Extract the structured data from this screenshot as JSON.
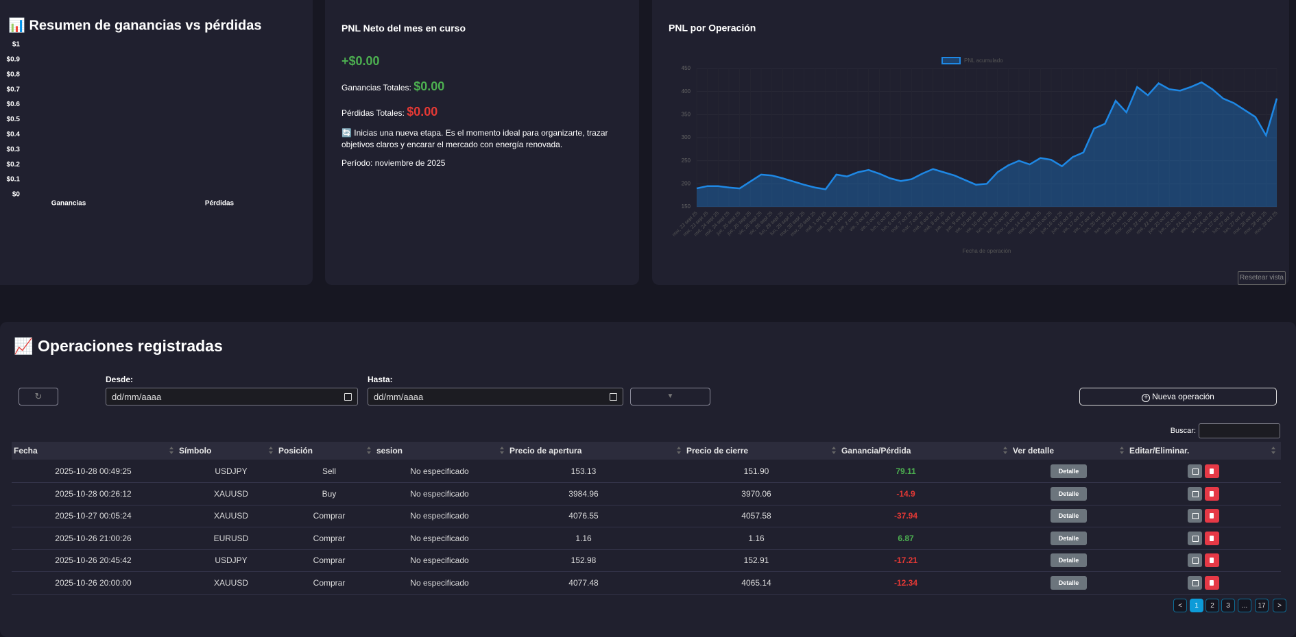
{
  "chart_data": [
    {
      "type": "bar",
      "title": "📊 Resumen de ganancias vs pérdidas",
      "categories": [
        "Ganancias",
        "Pérdidas"
      ],
      "values": [
        0,
        0
      ],
      "color": "#4caf50",
      "ylim": [
        0,
        1
      ],
      "yticks": [
        {
          "value": 0,
          "label": "$0"
        },
        {
          "value": 0.1,
          "label": "$0.1"
        },
        {
          "value": 0.2,
          "label": "$0.2"
        },
        {
          "value": 0.3,
          "label": "$0.3"
        },
        {
          "value": 0.4,
          "label": "$0.4"
        },
        {
          "value": 0.5,
          "label": "$0.5"
        },
        {
          "value": 0.6,
          "label": "$0.6"
        },
        {
          "value": 0.7,
          "label": "$0.7"
        },
        {
          "value": 0.8,
          "label": "$0.8"
        },
        {
          "value": 0.9,
          "label": "$0.9"
        },
        {
          "value": 1,
          "label": "$1"
        }
      ],
      "grid": false
    },
    {
      "type": "line",
      "title": "PNL por Operación",
      "x_label": "Fecha de operación",
      "categories": [
        "mar, 23 sept 25",
        "mar, 23 sept 25",
        "mié, 24 sept 25",
        "mié, 24 sept 25",
        "jue, 25 sept 25",
        "jue, 25 sept 25",
        "vie, 26 sept 25",
        "vie, 26 sept 25",
        "lun, 29 sept 25",
        "lun, 29 sept 25",
        "mar, 30 sept 25",
        "mar, 30 sept 25",
        "mié, 1 oct 25",
        "mié, 1 oct 25",
        "jue, 2 oct 25",
        "jue, 2 oct 25",
        "vie, 3 oct 25",
        "vie, 3 oct 25",
        "lun, 6 oct 25",
        "lun, 6 oct 25",
        "mar, 7 oct 25",
        "mar, 7 oct 25",
        "mié, 8 oct 25",
        "mié, 8 oct 25",
        "jue, 9 oct 25",
        "jue, 9 oct 25",
        "vie, 10 oct 25",
        "vie, 10 oct 25",
        "lun, 13 oct 25",
        "lun, 13 oct 25",
        "mar, 14 oct 25",
        "mar, 14 oct 25",
        "mié, 15 oct 25",
        "mié, 15 oct 25",
        "jue, 16 oct 25",
        "jue, 16 oct 25",
        "vie, 17 oct 25",
        "vie, 17 oct 25",
        "lun, 20 oct 25",
        "lun, 20 oct 25",
        "mar, 21 oct 25",
        "mar, 21 oct 25",
        "mié, 22 oct 25",
        "mié, 22 oct 25",
        "jue, 23 oct 25",
        "jue, 23 oct 25",
        "vie, 24 oct 25",
        "vie, 24 oct 25",
        "vie, 24 oct 25",
        "lun, 27 oct 25",
        "lun, 27 oct 25",
        "lun, 27 oct 25",
        "mar, 28 oct 25",
        "mar, 28 oct 25",
        "mar, 28 oct 25"
      ],
      "series": [
        {
          "name": "PNL acumulado",
          "color": "#1e88e5",
          "values": [
            190,
            195,
            195,
            192,
            190,
            205,
            220,
            218,
            212,
            205,
            198,
            192,
            188,
            220,
            216,
            225,
            230,
            222,
            212,
            206,
            210,
            222,
            232,
            225,
            218,
            208,
            198,
            200,
            225,
            240,
            250,
            242,
            256,
            252,
            238,
            258,
            268,
            320,
            330,
            380,
            355,
            410,
            392,
            418,
            405,
            402,
            410,
            420,
            405,
            385,
            375,
            360,
            345,
            305,
            385
          ]
        }
      ],
      "ylim": [
        150,
        450
      ],
      "yticks": [
        150,
        200,
        250,
        300,
        350,
        400,
        450
      ],
      "grid": true
    }
  ],
  "chart_controls": {
    "reset_button": "Resetear vista"
  },
  "month_card": {
    "title": "PNL Neto del mes en curso",
    "net": "+$0.00",
    "gains_label": "Ganancias Totales:",
    "gains": "$0.00",
    "losses_label": "Pérdidas Totales:",
    "losses": "$0.00",
    "message": "🔄 Inicias una nueva etapa. Es el momento ideal para organizarte, trazar objetivos claros y encarar el mercado con energía renovada.",
    "period": "Período: noviembre de 2025"
  },
  "operations": {
    "title": "📈 Operaciones registradas",
    "from_label": "Desde:",
    "to_label": "Hasta:",
    "date_placeholder": "dd/mm/aaaa",
    "new_button": "Nueva operación",
    "search_label": "Buscar:",
    "columns": [
      "Fecha",
      "Símbolo",
      "Posición",
      "sesion",
      "Precio de apertura",
      "Precio de cierre",
      "Ganancia/Pérdida",
      "Ver detalle",
      "Editar/Eliminar."
    ],
    "rows": [
      [
        "2025-10-28 00:49:25",
        "USDJPY",
        "Sell",
        "No especificado",
        "153.13",
        "151.90",
        "79.11"
      ],
      [
        "2025-10-28 00:26:12",
        "XAUUSD",
        "Buy",
        "No especificado",
        "3984.96",
        "3970.06",
        "-14.9"
      ],
      [
        "2025-10-27 00:05:24",
        "XAUUSD",
        "Comprar",
        "No especificado",
        "4076.55",
        "4057.58",
        "-37.94"
      ],
      [
        "2025-10-26 21:00:26",
        "EURUSD",
        "Comprar",
        "No especificado",
        "1.16",
        "1.16",
        "6.87"
      ],
      [
        "2025-10-26 20:45:42",
        "USDJPY",
        "Comprar",
        "No especificado",
        "152.98",
        "152.91",
        "-17.21"
      ],
      [
        "2025-10-26 20:00:00",
        "XAUUSD",
        "Comprar",
        "No especificado",
        "4077.48",
        "4065.14",
        "-12.34"
      ]
    ],
    "detail_button": "Detalle",
    "pagination": [
      "<",
      "1",
      "2",
      "3",
      "...",
      "17",
      ">"
    ],
    "active_page": 1
  }
}
